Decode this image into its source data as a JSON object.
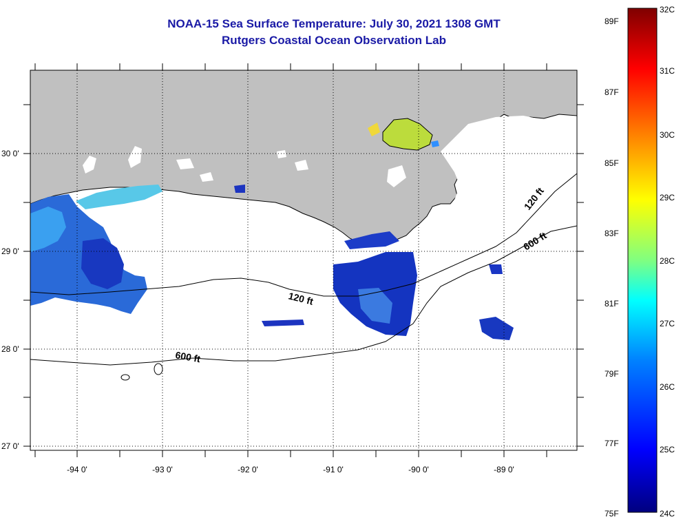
{
  "title": {
    "line1": "NOAA-15 Sea Surface Temperature:  July 30, 2021 1308 GMT",
    "line2": "Rutgers Coastal Ocean Observation Lab"
  },
  "map": {
    "lon_labels": [
      "-94 0'",
      "-93 0'",
      "-92 0'",
      "-91 0'",
      "-90 0'",
      "-89 0'"
    ],
    "lat_labels": [
      "30 0'",
      "29 0'",
      "28 0'",
      "27 0'"
    ],
    "isobaths": [
      {
        "label": "120 ft",
        "depth_ft": 120
      },
      {
        "label": "120 ft",
        "depth_ft": 120
      },
      {
        "label": "600 ft",
        "depth_ft": 600
      },
      {
        "label": "600 ft",
        "depth_ft": 600
      }
    ],
    "land_color": "#c0c0c0",
    "grid": "dotted"
  },
  "colorbar": {
    "celsius_labels": [
      "32C",
      "31C",
      "30C",
      "29C",
      "28C",
      "27C",
      "26C",
      "25C",
      "24C"
    ],
    "fahrenheit_labels": [
      "89F",
      "87F",
      "85F",
      "83F",
      "81F",
      "79F",
      "77F",
      "75F"
    ],
    "range_c": [
      24,
      32
    ],
    "colors": [
      "#00007f",
      "#0000ff",
      "#0080ff",
      "#00ffff",
      "#80ff80",
      "#ffff00",
      "#ff8000",
      "#ff0000",
      "#7f0000"
    ]
  }
}
